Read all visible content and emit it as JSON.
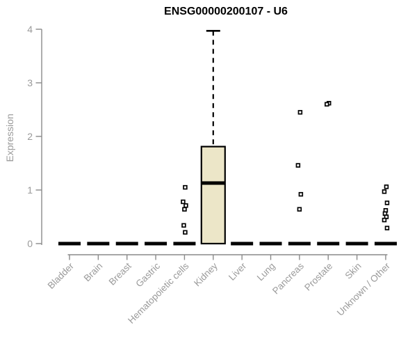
{
  "chart_data": {
    "type": "boxplot",
    "title": "ENSG00000200107 - U6",
    "ylabel": "Expression",
    "xlabel": "",
    "ylim": [
      0,
      4
    ],
    "y_ticks": [
      0,
      1,
      2,
      3,
      4
    ],
    "grid": false,
    "legend": "none",
    "colors": {
      "box_fill": "#ece6c8",
      "box_stroke": "#000000",
      "axis_line": "#8a8a8a",
      "tick_label": "#9a9a9a",
      "title": "#000000"
    },
    "categories": [
      "Bladder",
      "Brain",
      "Breast",
      "Gastric",
      "Hematopoietic cells",
      "Kidney",
      "Liver",
      "Lung",
      "Pancreas",
      "Prostate",
      "Skin",
      "Unknown / Other"
    ],
    "boxes": [
      {
        "category": "Bladder",
        "q1": 0,
        "median": 0,
        "q3": 0,
        "whisker_low": 0,
        "whisker_high": 0,
        "outliers": []
      },
      {
        "category": "Brain",
        "q1": 0,
        "median": 0,
        "q3": 0,
        "whisker_low": 0,
        "whisker_high": 0,
        "outliers": []
      },
      {
        "category": "Breast",
        "q1": 0,
        "median": 0,
        "q3": 0,
        "whisker_low": 0,
        "whisker_high": 0,
        "outliers": []
      },
      {
        "category": "Gastric",
        "q1": 0,
        "median": 0,
        "q3": 0,
        "whisker_low": 0,
        "whisker_high": 0,
        "outliers": []
      },
      {
        "category": "Hematopoietic cells",
        "q1": 0,
        "median": 0,
        "q3": 0,
        "whisker_low": 0,
        "whisker_high": 0,
        "outliers": [
          1.05,
          0.78,
          0.71,
          0.64,
          0.34,
          0.21
        ]
      },
      {
        "category": "Kidney",
        "q1": 0,
        "median": 1.13,
        "q3": 1.81,
        "whisker_low": 0,
        "whisker_high": 3.97,
        "outliers": []
      },
      {
        "category": "Liver",
        "q1": 0,
        "median": 0,
        "q3": 0,
        "whisker_low": 0,
        "whisker_high": 0,
        "outliers": []
      },
      {
        "category": "Lung",
        "q1": 0,
        "median": 0,
        "q3": 0,
        "whisker_low": 0,
        "whisker_high": 0,
        "outliers": []
      },
      {
        "category": "Pancreas",
        "q1": 0,
        "median": 0,
        "q3": 0,
        "whisker_low": 0,
        "whisker_high": 0,
        "outliers": [
          2.45,
          1.46,
          0.92,
          0.64
        ]
      },
      {
        "category": "Prostate",
        "q1": 0,
        "median": 0,
        "q3": 0,
        "whisker_low": 0,
        "whisker_high": 0,
        "outliers": [
          2.62,
          2.6
        ]
      },
      {
        "category": "Skin",
        "q1": 0,
        "median": 0,
        "q3": 0,
        "whisker_low": 0,
        "whisker_high": 0,
        "outliers": []
      },
      {
        "category": "Unknown / Other",
        "q1": 0,
        "median": 0,
        "q3": 0,
        "whisker_low": 0,
        "whisker_high": 0,
        "outliers": [
          1.06,
          0.97,
          0.76,
          0.62,
          0.56,
          0.5,
          0.44,
          0.29
        ]
      }
    ]
  }
}
